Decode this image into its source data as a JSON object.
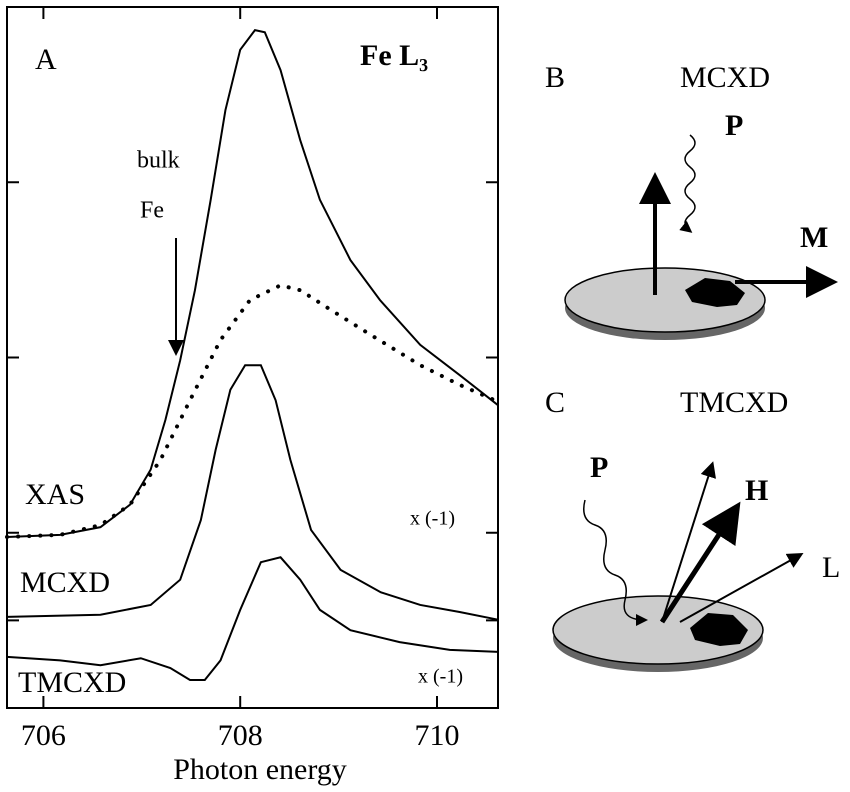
{
  "chart_data": {
    "type": "line",
    "xlabel": "Photon energy",
    "xlim": [
      705.63,
      710.62
    ],
    "ylim": [
      0,
      100
    ],
    "xticks": [
      706,
      708,
      710
    ],
    "yticks": [
      12.5,
      25,
      50,
      75
    ],
    "annotations": [
      "A",
      "Fe L₃",
      "bulk",
      "Fe",
      "x (-1)",
      "x (-1)"
    ],
    "series": [
      {
        "name": "XAS",
        "color": "#000000",
        "x": [
          705.63,
          706.17,
          706.58,
          706.88,
          707.09,
          707.24,
          707.39,
          707.54,
          707.7,
          707.85,
          708.0,
          708.15,
          708.25,
          708.41,
          708.61,
          708.81,
          709.12,
          709.42,
          709.83,
          710.23,
          710.62
        ],
        "values": [
          24.4,
          24.7,
          25.8,
          29.0,
          34.0,
          41.1,
          49.6,
          59.6,
          72.5,
          85.3,
          93.9,
          96.7,
          96.4,
          91.0,
          81.0,
          72.5,
          63.9,
          58.2,
          51.8,
          47.5,
          43.2
        ]
      },
      {
        "color": "#000000",
        "style": "dotted",
        "x": [
          705.63,
          706.17,
          706.58,
          706.88,
          707.19,
          707.49,
          707.8,
          708.1,
          708.41,
          708.61,
          708.92,
          709.33,
          709.83,
          710.23,
          710.62
        ],
        "values": [
          24.4,
          24.7,
          26.1,
          29.0,
          35.4,
          43.9,
          52.5,
          58.2,
          60.3,
          59.6,
          56.8,
          53.2,
          48.9,
          46.1,
          43.7
        ]
      },
      {
        "name": "MCXD",
        "color": "#000000",
        "x": [
          705.63,
          706.58,
          707.09,
          707.39,
          707.6,
          707.75,
          707.9,
          708.05,
          708.21,
          708.36,
          708.51,
          708.72,
          709.02,
          709.43,
          709.83,
          710.23,
          710.62
        ],
        "values": [
          13.0,
          13.3,
          14.7,
          18.3,
          26.8,
          36.8,
          45.4,
          48.9,
          48.9,
          43.9,
          35.4,
          25.4,
          19.7,
          16.5,
          14.7,
          13.7,
          12.6
        ]
      },
      {
        "name": "TMCXD",
        "color": "#000000",
        "x": [
          705.63,
          706.17,
          706.58,
          706.99,
          707.29,
          707.49,
          707.64,
          707.8,
          708.0,
          708.21,
          708.41,
          708.61,
          708.81,
          709.12,
          709.62,
          710.13,
          710.62
        ],
        "values": [
          7.3,
          6.8,
          6.1,
          7.1,
          5.7,
          4.0,
          4.0,
          6.8,
          14.0,
          20.8,
          21.5,
          18.3,
          14.0,
          11.1,
          9.4,
          8.3,
          8.0
        ]
      }
    ],
    "panels": [
      {
        "letter": "B",
        "title": "MCXD",
        "labels": [
          "P",
          "M"
        ]
      },
      {
        "letter": "C",
        "title": "TMCXD",
        "labels": [
          "P",
          "H",
          "L"
        ]
      }
    ]
  }
}
